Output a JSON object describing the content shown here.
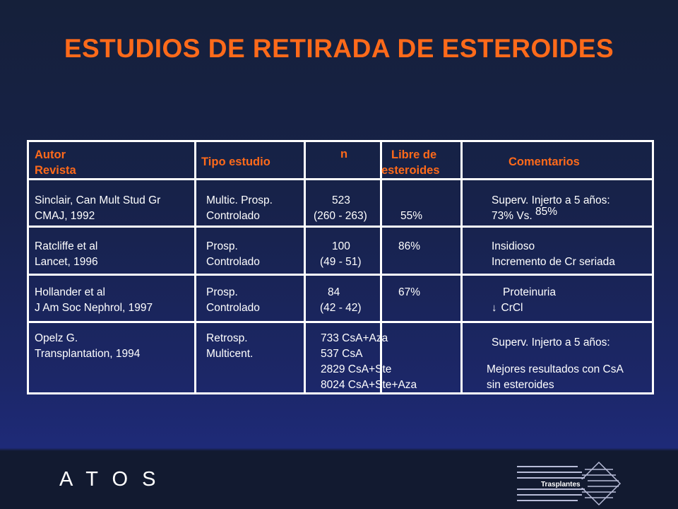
{
  "slide": {
    "title": "ESTUDIOS DE RETIRADA DE ESTEROIDES"
  },
  "table": {
    "headers": {
      "autor": "Autor",
      "revista": "Revista",
      "tipo": "Tipo estudio",
      "n": "n",
      "libre1": "Libre de",
      "libre2": "esteroides",
      "comentarios": "Comentarios"
    },
    "rows": [
      {
        "autor": "Sinclair,  Can Mult Stud Gr",
        "revista": "CMAJ, 1992",
        "tipo1": "Multic.  Prosp.",
        "tipo2": " Controlado",
        "n1": "523",
        "n2": "(260 - 263)",
        "libre": "55%",
        "com1": "Superv. Injerto a 5 años:",
        "com2": "73% Vs.",
        "com2b": "85%"
      },
      {
        "autor": "Ratcliffe et al",
        "revista": "Lancet, 1996",
        "tipo1": "Prosp.",
        "tipo2": "Controlado",
        "n1": "100",
        "n2": "(49 - 51)",
        "libre": "86%",
        "com1": "Insidioso",
        "com2": "Incremento de Cr seriada"
      },
      {
        "autor": "Hollander et al",
        "revista": "J Am Soc Nephrol, 1997",
        "tipo1": "Prosp.",
        "tipo2": "Controlado",
        "n1": "84",
        "n2": "(42 - 42)",
        "libre": "67%",
        "com1": "Proteinuria",
        "com2": "CrCl"
      },
      {
        "autor": "Opelz G.",
        "revista": "Transplantation, 1994",
        "tipo1": "Retrosp.",
        "tipo2": "Multicent.",
        "n1": "733 CsA+Aza",
        "n2": "537 CsA",
        "n3": "2829 CsA+Ste",
        "n4": "8024 CsA+Ste+Aza",
        "com1": "Superv. Injerto a 5 años:",
        "com2": "Mejores resultados con CsA",
        "com3": "sin esteroides"
      }
    ]
  },
  "footer": {
    "brand": "A T O S",
    "logo_text": "Trasplantes"
  },
  "colors": {
    "title": "#ff6a1a",
    "text": "#ffffff",
    "background_top": "#15203a",
    "background_bottom": "#1e2a78",
    "footer_band": "#121a30"
  }
}
